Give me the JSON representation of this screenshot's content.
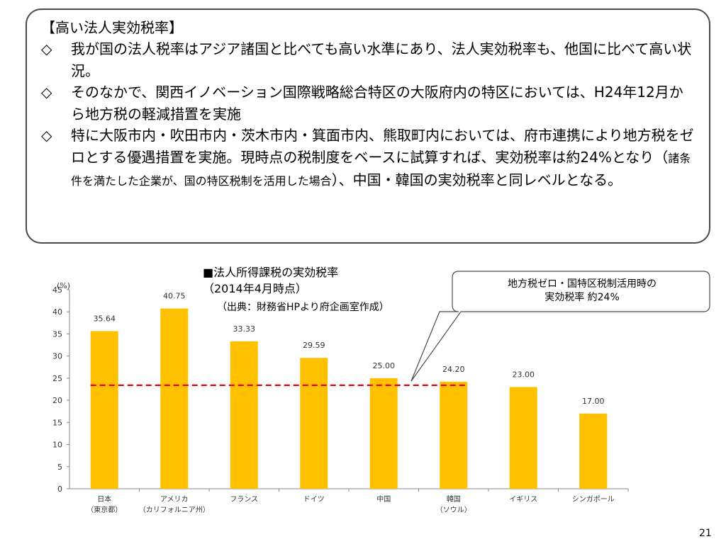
{
  "box": {
    "title": "【高い法人実効税率】",
    "bullets": [
      {
        "mark": "◇",
        "text": "我が国の法人税率はアジア諸国と比べても高い水準にあり、法人実効税率も、他国に比べて高い状況。"
      },
      {
        "mark": "◇",
        "text": "そのなかで、関西イノベーション国際戦略総合特区の大阪府内の特区においては、H24年12月から地方税の軽減措置を実施"
      },
      {
        "mark": "◇",
        "text_a": "特に大阪市内・吹田市内・茨木市内・箕面市内、熊取町内においては、府市連携により地方税をゼロとする優遇措置を実施。現時点の税制度をベースに試算すれば、実効税率は約24%となり（",
        "text_small": "諸条件を満たした企業が、国の特区税制を活用した場合",
        "text_b": "）、中国・韓国の実効税率と同レベルとなる。"
      }
    ]
  },
  "chart_header": {
    "title": "■法人所得課税の実効税率",
    "subtitle": "（2014年4月時点）",
    "source": "（出典：財務省HPより府企画室作成）"
  },
  "callout": {
    "line1": "地方税ゼロ・国特区税制活用時の",
    "line2": "実効税率  約24%"
  },
  "chart_data": {
    "type": "bar",
    "ylabel": "(%)",
    "ylim": [
      0,
      45
    ],
    "yticks": [
      0,
      5,
      10,
      15,
      20,
      25,
      30,
      35,
      40,
      45
    ],
    "categories": [
      {
        "name": "日本",
        "sub": "（東京都）"
      },
      {
        "name": "アメリカ",
        "sub": "（カリフォルニア州）"
      },
      {
        "name": "フランス",
        "sub": ""
      },
      {
        "name": "ドイツ",
        "sub": ""
      },
      {
        "name": "中国",
        "sub": ""
      },
      {
        "name": "韓国",
        "sub": "（ソウル）"
      },
      {
        "name": "イギリス",
        "sub": ""
      },
      {
        "name": "シンガポール",
        "sub": ""
      }
    ],
    "values": [
      35.64,
      40.75,
      33.33,
      29.59,
      25.0,
      24.2,
      23.0,
      17.0
    ],
    "labels": [
      "35.64",
      "40.75",
      "33.33",
      "29.59",
      "25.00",
      "24.20",
      "23.00",
      "17.00"
    ],
    "reference_line": 23.4,
    "colors": {
      "bar": "#FFC000",
      "reference": "#E60012",
      "axis": "#888888"
    }
  },
  "page_number": "21"
}
